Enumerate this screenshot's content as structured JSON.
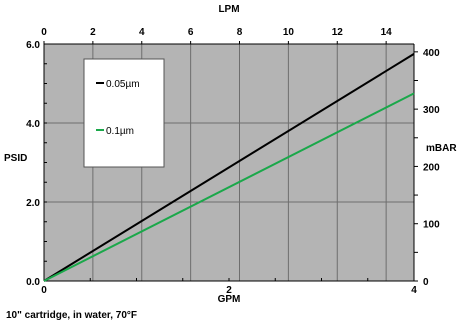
{
  "chart_data": {
    "type": "line",
    "xlabel": "GPM",
    "x2label": "LPM",
    "ylabel": "PSID",
    "y2label": "mBAR",
    "xlim": [
      0,
      4
    ],
    "ylim": [
      0,
      6.0
    ],
    "x2lim": [
      0,
      15.14
    ],
    "y2lim": [
      0,
      413.7
    ],
    "x_ticks": [
      "0",
      "2",
      "4"
    ],
    "y_ticks": [
      "0.0",
      "2.0",
      "4.0",
      "6.0"
    ],
    "x2_ticks": [
      "0",
      "2",
      "4",
      "6",
      "8",
      "10",
      "12",
      "14"
    ],
    "y2_ticks": [
      "0",
      "100",
      "200",
      "300",
      "400"
    ],
    "grid": true,
    "background": "#b4b4b4",
    "legend_position": "top-left",
    "series": [
      {
        "name": "0.05µm",
        "color": "#000000",
        "x": [
          0,
          4
        ],
        "y": [
          0,
          5.75
        ]
      },
      {
        "name": "0.1µm",
        "color": "#1aa84a",
        "x": [
          0,
          4
        ],
        "y": [
          0,
          4.75
        ]
      }
    ],
    "annotation": "10\" cartridge, in water, 70°F"
  }
}
